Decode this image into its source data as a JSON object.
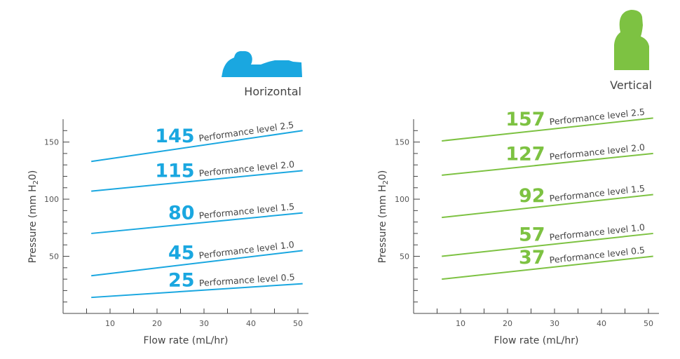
{
  "chart_data": [
    {
      "type": "line",
      "title": "Horizontal",
      "icon": "lying-person-icon",
      "color": "#1aa7e0",
      "xlabel": "Flow rate (mL/hr)",
      "ylabel_main": "Pressure (mm H",
      "ylabel_sub": "2",
      "ylabel_end": "0)",
      "xticks": [
        10,
        20,
        30,
        40,
        50
      ],
      "yticks": [
        50,
        100,
        150
      ],
      "xlim": [
        0,
        52
      ],
      "ylim": [
        0,
        170
      ],
      "series": [
        {
          "name": "Performance level 2.5",
          "value": "145",
          "x": [
            6,
            51
          ],
          "y": [
            133,
            160
          ]
        },
        {
          "name": "Performance level 2.0",
          "value": "115",
          "x": [
            6,
            51
          ],
          "y": [
            107,
            125
          ]
        },
        {
          "name": "Performance level 1.5",
          "value": "80",
          "x": [
            6,
            51
          ],
          "y": [
            70,
            88
          ]
        },
        {
          "name": "Performance level 1.0",
          "value": "45",
          "x": [
            6,
            51
          ],
          "y": [
            33,
            55
          ]
        },
        {
          "name": "Performance level 0.5",
          "value": "25",
          "x": [
            6,
            51
          ],
          "y": [
            14,
            26
          ]
        }
      ]
    },
    {
      "type": "line",
      "title": "Vertical",
      "icon": "upright-person-icon",
      "color": "#7dc242",
      "xlabel": "Flow rate (mL/hr)",
      "ylabel_main": "Pressure (mm H",
      "ylabel_sub": "2",
      "ylabel_end": "0)",
      "xticks": [
        10,
        20,
        30,
        40,
        50
      ],
      "yticks": [
        50,
        100,
        150
      ],
      "xlim": [
        0,
        52
      ],
      "ylim": [
        0,
        170
      ],
      "series": [
        {
          "name": "Performance level 2.5",
          "value": "157",
          "x": [
            6,
            51
          ],
          "y": [
            151,
            171
          ]
        },
        {
          "name": "Performance level 2.0",
          "value": "127",
          "x": [
            6,
            51
          ],
          "y": [
            121,
            140
          ]
        },
        {
          "name": "Performance level 1.5",
          "value": "92",
          "x": [
            6,
            51
          ],
          "y": [
            84,
            104
          ]
        },
        {
          "name": "Performance level 1.0",
          "value": "57",
          "x": [
            6,
            51
          ],
          "y": [
            50,
            70
          ]
        },
        {
          "name": "Performance level 0.5",
          "value": "37",
          "x": [
            6,
            51
          ],
          "y": [
            30,
            50
          ]
        }
      ]
    }
  ]
}
